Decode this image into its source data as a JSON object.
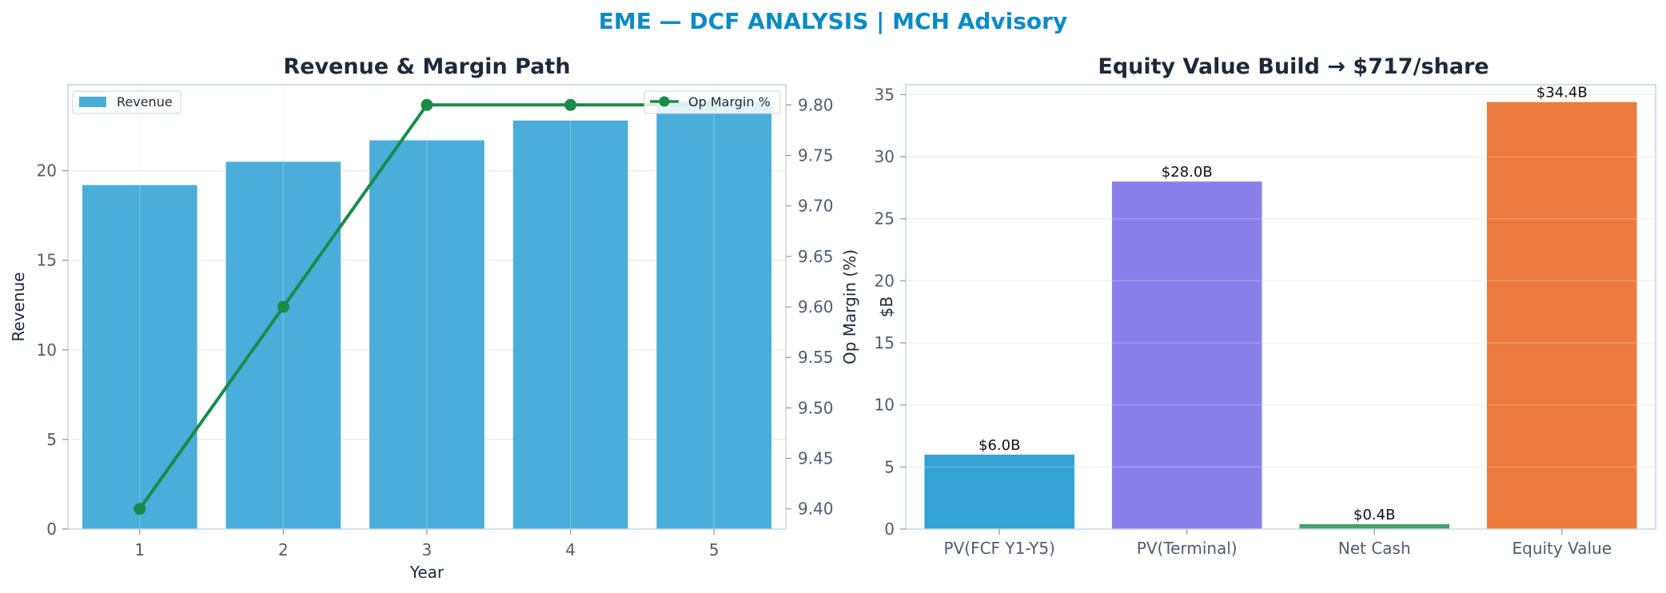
{
  "suptitle": "EME — DCF ANALYSIS | MCH Advisory",
  "colors": {
    "title": "#0b8ac7",
    "revenue_bar": "#4badd9",
    "op_margin_line": "#1a8a4a",
    "pv_fcf_bar": "#35a2d4",
    "pv_terminal_bar": "#8a7eeb",
    "net_cash_bar": "#4a9e6a",
    "equity_value_bar": "#ec7b3e"
  },
  "chart_data": [
    {
      "type": "bar",
      "title": "Revenue & Margin Path",
      "xlabel": "Year",
      "ylabel": "Revenue",
      "y2label": "Op Margin (%)",
      "categories": [
        "1",
        "2",
        "3",
        "4",
        "5"
      ],
      "ylim": [
        0,
        24.8
      ],
      "y2lim": [
        9.38,
        9.82
      ],
      "yticks": [
        "0",
        "5",
        "10",
        "15",
        "20"
      ],
      "y2ticks": [
        "9.40",
        "9.45",
        "9.50",
        "9.55",
        "9.60",
        "9.65",
        "9.70",
        "9.75",
        "9.80"
      ],
      "grid": true,
      "series": [
        {
          "name": "Revenue",
          "type": "bar",
          "axis": "left",
          "values": [
            19.2,
            20.5,
            21.7,
            22.8,
            23.9
          ]
        },
        {
          "name": "Op Margin %",
          "type": "line",
          "axis": "right",
          "values": [
            9.4,
            9.6,
            9.8,
            9.8,
            9.8
          ]
        }
      ],
      "legend": [
        {
          "label": "Revenue",
          "placement": "top-left"
        },
        {
          "label": "Op Margin %",
          "placement": "top-right"
        }
      ]
    },
    {
      "type": "bar",
      "title": "Equity Value Build → $717/share",
      "xlabel": "",
      "ylabel": "$B",
      "categories": [
        "PV(FCF Y1-Y5)",
        "PV(Terminal)",
        "Net Cash",
        "Equity Value"
      ],
      "values": [
        6.0,
        28.0,
        0.4,
        34.4
      ],
      "data_labels": [
        "$6.0B",
        "$28.0B",
        "$0.4B",
        "$34.4B"
      ],
      "ylim": [
        0,
        35.8
      ],
      "yticks": [
        "0",
        "5",
        "10",
        "15",
        "20",
        "25",
        "30",
        "35"
      ],
      "grid": true
    }
  ]
}
